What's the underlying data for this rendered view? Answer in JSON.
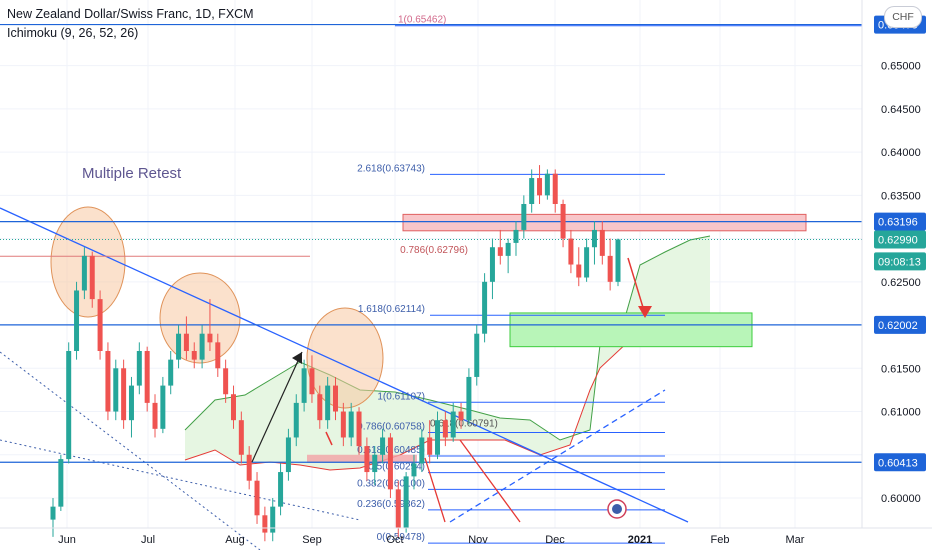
{
  "header": {
    "title": "New Zealand Dollar/Swiss Franc, 1D, FXCM",
    "indicator": "Ichimoku (9, 26, 52, 26)",
    "currency_button": "CHF"
  },
  "annotation": {
    "text": "Multiple Retest"
  },
  "colors": {
    "up": "#26a69a",
    "down": "#ef5350",
    "hline": "#1e64d8",
    "fib_line": "#2962ff",
    "fib_text": "#3d5eaa",
    "red_zone": "#f8c6c9",
    "green_zone": "#b8f5b8",
    "cloud": "#e6f6e2"
  },
  "chart_data": {
    "type": "candlestick",
    "symbol": "NZDCHF",
    "timeframe": "1D",
    "x_labels": [
      "Jun",
      "Jul",
      "Aug",
      "Sep",
      "Oct",
      "Nov",
      "Dec",
      "2021",
      "Feb",
      "Mar"
    ],
    "y_ticks": [
      "0.65000",
      "0.64500",
      "0.64000",
      "0.63500",
      "0.62500",
      "0.61500",
      "0.61000",
      "0.60000"
    ],
    "ylim": [
      0.5945,
      0.6575
    ],
    "price_labels": [
      {
        "text": "0.65475",
        "value": 0.65475,
        "color": "#1e64d8"
      },
      {
        "text": "0.63196",
        "value": 0.63196,
        "color": "#1e64d8"
      },
      {
        "text": "0.62990",
        "value": 0.6299,
        "color": "#26a69a"
      },
      {
        "text": "09:08:13",
        "value": 0.62736,
        "color": "#26a69a"
      },
      {
        "text": "0.62002",
        "value": 0.62002,
        "color": "#1e64d8"
      },
      {
        "text": "0.60413",
        "value": 0.60413,
        "color": "#1e64d8"
      }
    ],
    "horizontal_levels": [
      0.65475,
      0.63196,
      0.62002,
      0.60413
    ],
    "fib_upper": [
      {
        "label": "1(0.65462)",
        "value": 0.65462
      },
      {
        "label": "2.618(0.63743)",
        "value": 0.63743
      },
      {
        "label": "0.786(0.62796)",
        "value": 0.62796
      },
      {
        "label": "1.618(0.62114)",
        "value": 0.62114
      }
    ],
    "fib_lower": [
      {
        "label": "1(0.61107)",
        "value": 0.61107
      },
      {
        "label": "0.786(0.60758)",
        "value": 0.60758
      },
      {
        "label": "0.618(0.60485)",
        "value": 0.60485
      },
      {
        "label": "0.5(0.60294)",
        "value": 0.60294
      },
      {
        "label": "0.382(0.60100)",
        "value": 0.601
      },
      {
        "label": "0.236(0.59862)",
        "value": 0.59862
      },
      {
        "label": "0(0.59478)",
        "value": 0.59478
      }
    ],
    "extra_labels": [
      {
        "label": "0.618(0.60791)",
        "value": 0.60791
      }
    ],
    "zones": [
      {
        "type": "resistance",
        "from": 0.6309,
        "to": 0.6328
      },
      {
        "type": "support",
        "from": 0.6175,
        "to": 0.6214
      }
    ],
    "candles": [
      [
        0.5975,
        0.6,
        0.5955,
        0.599
      ],
      [
        0.599,
        0.605,
        0.5985,
        0.6045
      ],
      [
        0.6045,
        0.618,
        0.604,
        0.617
      ],
      [
        0.617,
        0.625,
        0.616,
        0.624
      ],
      [
        0.624,
        0.629,
        0.623,
        0.628
      ],
      [
        0.628,
        0.6285,
        0.622,
        0.623
      ],
      [
        0.623,
        0.624,
        0.616,
        0.617
      ],
      [
        0.617,
        0.618,
        0.609,
        0.61
      ],
      [
        0.61,
        0.616,
        0.609,
        0.615
      ],
      [
        0.615,
        0.616,
        0.608,
        0.609
      ],
      [
        0.609,
        0.614,
        0.607,
        0.613
      ],
      [
        0.613,
        0.618,
        0.612,
        0.617
      ],
      [
        0.617,
        0.6175,
        0.61,
        0.611
      ],
      [
        0.611,
        0.612,
        0.607,
        0.608
      ],
      [
        0.608,
        0.614,
        0.6075,
        0.613
      ],
      [
        0.613,
        0.617,
        0.612,
        0.616
      ],
      [
        0.616,
        0.62,
        0.615,
        0.619
      ],
      [
        0.619,
        0.621,
        0.616,
        0.617
      ],
      [
        0.617,
        0.618,
        0.615,
        0.616
      ],
      [
        0.616,
        0.62,
        0.615,
        0.619
      ],
      [
        0.619,
        0.623,
        0.617,
        0.618
      ],
      [
        0.618,
        0.619,
        0.614,
        0.615
      ],
      [
        0.615,
        0.616,
        0.611,
        0.612
      ],
      [
        0.612,
        0.613,
        0.608,
        0.609
      ],
      [
        0.609,
        0.61,
        0.604,
        0.605
      ],
      [
        0.605,
        0.606,
        0.601,
        0.602
      ],
      [
        0.602,
        0.603,
        0.597,
        0.598
      ],
      [
        0.598,
        0.599,
        0.595,
        0.596
      ],
      [
        0.596,
        0.6,
        0.595,
        0.599
      ],
      [
        0.599,
        0.604,
        0.598,
        0.603
      ],
      [
        0.603,
        0.608,
        0.602,
        0.607
      ],
      [
        0.607,
        0.612,
        0.606,
        0.611
      ],
      [
        0.611,
        0.616,
        0.61,
        0.615
      ],
      [
        0.615,
        0.6165,
        0.611,
        0.612
      ],
      [
        0.612,
        0.613,
        0.608,
        0.609
      ],
      [
        0.609,
        0.614,
        0.608,
        0.613
      ],
      [
        0.613,
        0.614,
        0.609,
        0.61
      ],
      [
        0.61,
        0.611,
        0.606,
        0.607
      ],
      [
        0.607,
        0.611,
        0.606,
        0.61
      ],
      [
        0.61,
        0.6105,
        0.605,
        0.606
      ],
      [
        0.606,
        0.607,
        0.602,
        0.603
      ],
      [
        0.603,
        0.606,
        0.6015,
        0.605
      ],
      [
        0.605,
        0.608,
        0.604,
        0.607
      ],
      [
        0.607,
        0.6075,
        0.6,
        0.601
      ],
      [
        0.601,
        0.602,
        0.5955,
        0.5965
      ],
      [
        0.5965,
        0.603,
        0.596,
        0.6025
      ],
      [
        0.6025,
        0.605,
        0.601,
        0.604
      ],
      [
        0.604,
        0.608,
        0.603,
        0.607
      ],
      [
        0.607,
        0.609,
        0.604,
        0.605
      ],
      [
        0.605,
        0.61,
        0.6045,
        0.609
      ],
      [
        0.609,
        0.61,
        0.606,
        0.607
      ],
      [
        0.607,
        0.611,
        0.6065,
        0.61
      ],
      [
        0.61,
        0.611,
        0.608,
        0.609
      ],
      [
        0.609,
        0.615,
        0.6085,
        0.614
      ],
      [
        0.614,
        0.62,
        0.613,
        0.619
      ],
      [
        0.619,
        0.626,
        0.618,
        0.625
      ],
      [
        0.625,
        0.63,
        0.623,
        0.629
      ],
      [
        0.629,
        0.631,
        0.627,
        0.628
      ],
      [
        0.628,
        0.63,
        0.626,
        0.6295
      ],
      [
        0.6295,
        0.632,
        0.628,
        0.631
      ],
      [
        0.631,
        0.635,
        0.63,
        0.634
      ],
      [
        0.634,
        0.638,
        0.633,
        0.637
      ],
      [
        0.637,
        0.6385,
        0.634,
        0.635
      ],
      [
        0.635,
        0.638,
        0.6345,
        0.6375
      ],
      [
        0.6375,
        0.638,
        0.633,
        0.634
      ],
      [
        0.634,
        0.6345,
        0.629,
        0.63
      ],
      [
        0.63,
        0.631,
        0.626,
        0.627
      ],
      [
        0.627,
        0.629,
        0.6245,
        0.6255
      ],
      [
        0.6255,
        0.63,
        0.625,
        0.629
      ],
      [
        0.629,
        0.632,
        0.627,
        0.631
      ],
      [
        0.631,
        0.632,
        0.627,
        0.628
      ],
      [
        0.628,
        0.63,
        0.624,
        0.625
      ],
      [
        0.625,
        0.63,
        0.6245,
        0.6299
      ]
    ]
  }
}
